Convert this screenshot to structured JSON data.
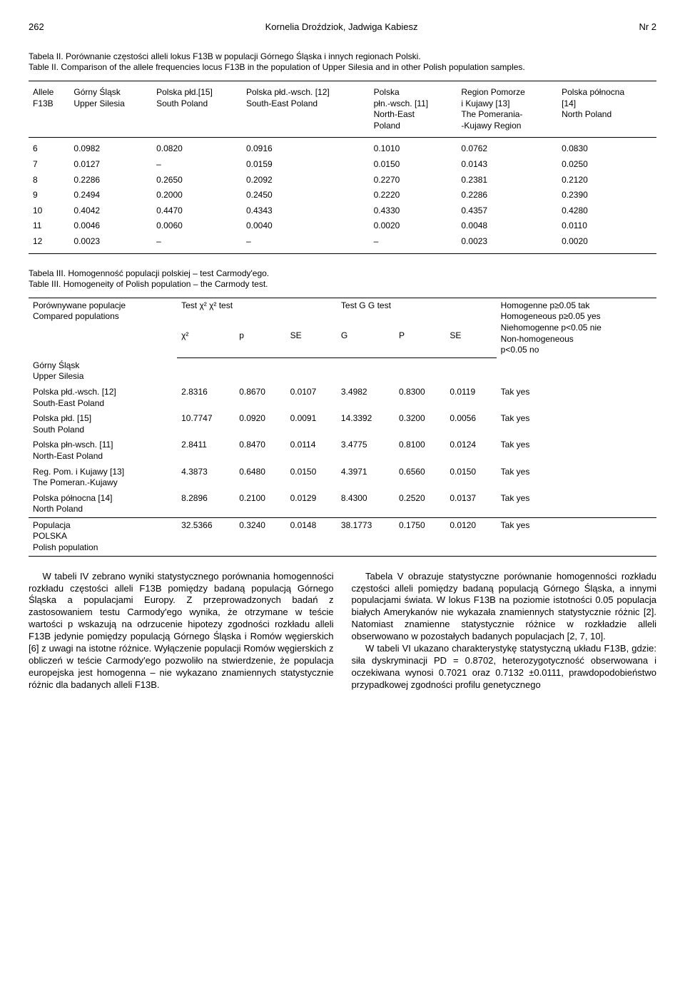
{
  "header": {
    "page_number": "262",
    "authors": "Kornelia Droździok, Jadwiga Kabiesz",
    "issue": "Nr 2"
  },
  "table2": {
    "caption_pl": "Tabela II. Porównanie częstości alleli lokus F13B w populacji Górnego Śląska i innych regionach Polski.",
    "caption_en": "Table II. Comparison of the allele frequencies locus F13B in the population of Upper Silesia and in other Polish population samples.",
    "headers": {
      "c0a": "Allele",
      "c0b": "F13B",
      "c1a": "Górny Śląsk",
      "c1b": "Upper Silesia",
      "c2a": "Polska płd.[15]",
      "c2b": "South Poland",
      "c3a": "Polska płd.-wsch. [12]",
      "c3b": "South-East Poland",
      "c4a": "Polska",
      "c4b": "płn.-wsch. [11]",
      "c4c": "North-East",
      "c4d": "Poland",
      "c5a": "Region Pomorze",
      "c5b": "i Kujawy [13]",
      "c5c": "The Pomerania-",
      "c5d": "-Kujawy Region",
      "c6a": "Polska północna",
      "c6b": "[14]",
      "c6c": "North Poland"
    },
    "rows": [
      {
        "a": "6",
        "v1": "0.0982",
        "v2": "0.0820",
        "v3": "0.0916",
        "v4": "0.1010",
        "v5": "0.0762",
        "v6": "0.0830"
      },
      {
        "a": "7",
        "v1": "0.0127",
        "v2": "–",
        "v3": "0.0159",
        "v4": "0.0150",
        "v5": "0.0143",
        "v6": "0.0250"
      },
      {
        "a": "8",
        "v1": "0.2286",
        "v2": "0.2650",
        "v3": "0.2092",
        "v4": "0.2270",
        "v5": "0.2381",
        "v6": "0.2120"
      },
      {
        "a": "9",
        "v1": "0.2494",
        "v2": "0.2000",
        "v3": "0.2450",
        "v4": "0.2220",
        "v5": "0.2286",
        "v6": "0.2390"
      },
      {
        "a": "10",
        "v1": "0.4042",
        "v2": "0.4470",
        "v3": "0.4343",
        "v4": "0.4330",
        "v5": "0.4357",
        "v6": "0.4280"
      },
      {
        "a": "11",
        "v1": "0.0046",
        "v2": "0.0060",
        "v3": "0.0040",
        "v4": "0.0020",
        "v5": "0.0048",
        "v6": "0.0110"
      },
      {
        "a": "12",
        "v1": "0.0023",
        "v2": "–",
        "v3": "–",
        "v4": "–",
        "v5": "0.0023",
        "v6": "0.0020"
      }
    ]
  },
  "table3": {
    "caption_pl": "Tabela III. Homogenność populacji polskiej – test Carmody'ego.",
    "caption_en": "Table III. Homogeneity of Polish population – the Carmody test.",
    "headers": {
      "compared_pl": "Porównywane populacje",
      "compared_en": "Compared populations",
      "chi_test": "Test χ² χ² test",
      "g_test": "Test G G test",
      "homog1": "Homogenne p≥0.05 tak",
      "homog2": "Homogeneous p≥0.05 yes",
      "homog3": "Niehomogenne p<0.05 nie",
      "homog4": "Non-homogeneous",
      "homog5": "p<0.05 no",
      "chi2": "χ²",
      "p": "p",
      "se1": "SE",
      "g": "G",
      "p2": "P",
      "se2": "SE"
    },
    "group_header_pl": "Górny Śląsk",
    "group_header_en": "Upper Silesia",
    "rows": [
      {
        "l1": "Polska płd.-wsch. [12]",
        "l2": "South-East Poland",
        "chi": "2.8316",
        "p": "0.8670",
        "se1": "0.0107",
        "g": "3.4982",
        "p2": "0.8300",
        "se2": "0.0119",
        "res": "Tak yes"
      },
      {
        "l1": "Polska płd. [15]",
        "l2": "South Poland",
        "chi": "10.7747",
        "p": "0.0920",
        "se1": "0.0091",
        "g": "14.3392",
        "p2": "0.3200",
        "se2": "0.0056",
        "res": "Tak yes"
      },
      {
        "l1": "Polska płn-wsch. [11]",
        "l2": "North-East Poland",
        "chi": "2.8411",
        "p": "0.8470",
        "se1": "0.0114",
        "g": "3.4775",
        "p2": "0.8100",
        "se2": "0.0124",
        "res": "Tak yes"
      },
      {
        "l1": "Reg. Pom. i Kujawy [13]",
        "l2": "The Pomeran.-Kujawy",
        "chi": "4.3873",
        "p": "0.6480",
        "se1": "0.0150",
        "g": "4.3971",
        "p2": "0.6560",
        "se2": "0.0150",
        "res": "Tak yes"
      },
      {
        "l1": "Polska północna [14]",
        "l2": "North Poland",
        "chi": "8.2896",
        "p": "0.2100",
        "se1": "0.0129",
        "g": "8.4300",
        "p2": "0.2520",
        "se2": "0.0137",
        "res": "Tak yes"
      }
    ],
    "total": {
      "l1": "Populacja",
      "l2": "POLSKA",
      "l3": "Polish population",
      "chi": "32.5366",
      "p": "0.3240",
      "se1": "0.0148",
      "g": "38.1773",
      "p2": "0.1750",
      "se2": "0.0120",
      "res": "Tak yes"
    }
  },
  "body": {
    "left": "W tabeli IV zebrano wyniki statystycznego porównania homogenności rozkładu częstości alleli F13B pomiędzy badaną populacją Górnego Śląska a populacjami Europy. Z przeprowadzonych badań z zastosowaniem testu Carmody'ego wynika, że otrzymane w teście wartości p wskazują na odrzucenie hipotezy zgodności rozkładu alleli F13B jedynie pomiędzy populacją Górnego Śląska i Romów węgierskich [6] z uwagi na istotne różnice. Wyłączenie populacji Romów węgierskich z obliczeń w teście Carmody'ego pozwoliło na stwierdzenie, że populacja europejska jest homogenna – nie wykazano znamiennych statystycznie różnic dla badanych alleli F13B.",
    "right1": "Tabela V obrazuje statystyczne porównanie homogenności rozkładu częstości alleli pomiędzy badaną populacją Górnego Śląska, a innymi populacjami świata. W lokus F13B na poziomie istotności 0.05 populacja białych Amerykanów nie wykazała znamiennych statystycznie różnic [2]. Natomiast znamienne statystycznie różnice w rozkładzie alleli obserwowano w pozostałych badanych populacjach [2, 7, 10].",
    "right2": "W tabeli VI ukazano charakterystykę statystyczną układu F13B, gdzie: siła dyskryminacji PD = 0.8702, heterozygotyczność obserwowana i oczekiwana wynosi 0.7021 oraz 0.7132 ±0.0111, prawdopodobieństwo przypadkowej zgodności profilu genetycznego"
  }
}
